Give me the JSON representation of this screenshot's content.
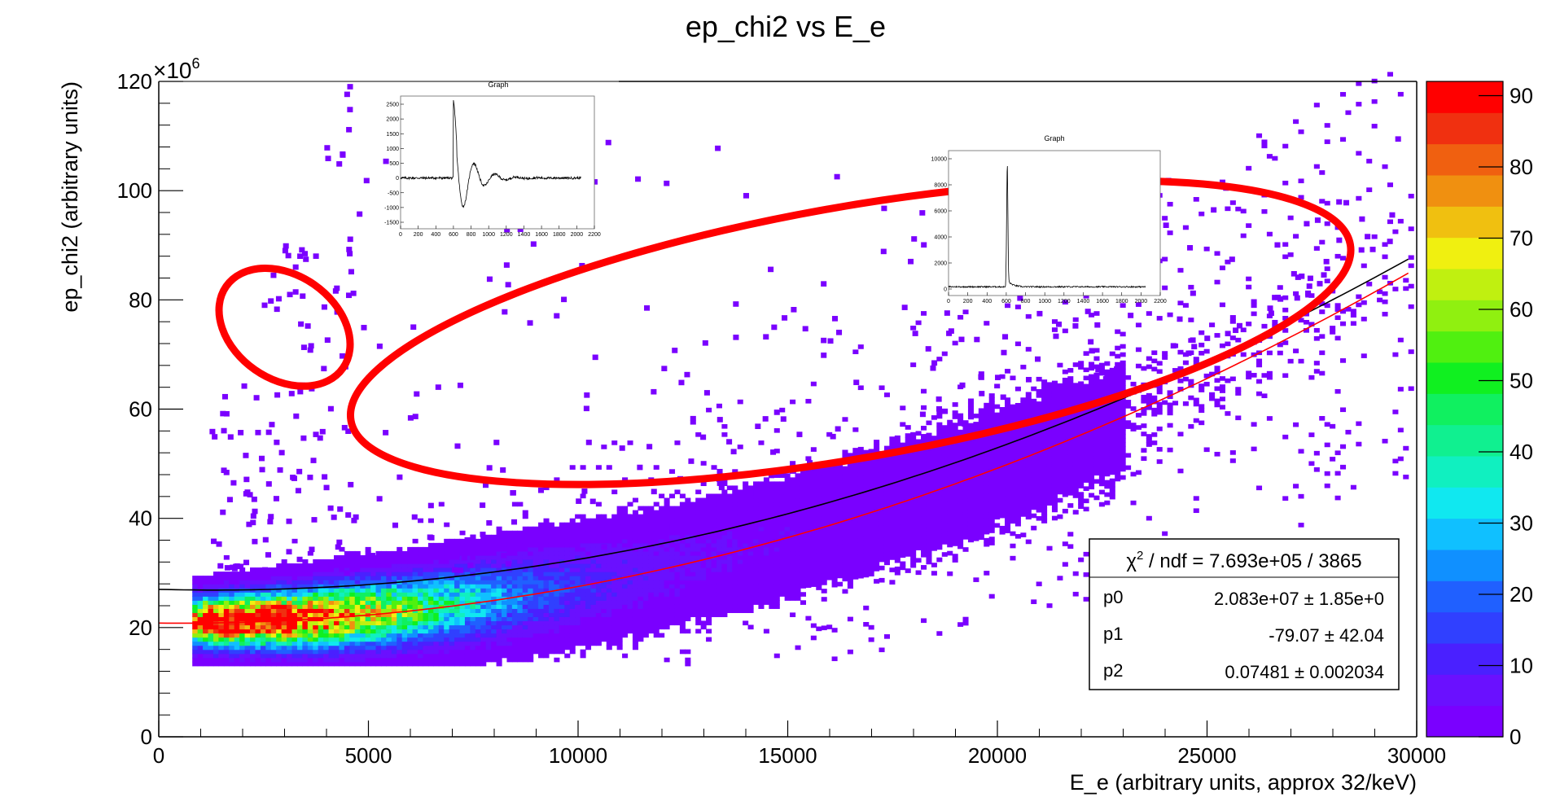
{
  "chart_data": {
    "type": "heatmap",
    "title": "ep_chi2 vs E_e",
    "xlabel": "E_e (arbitrary units, approx 32/keV)",
    "ylabel": "ep_chi2 (arbitrary units)",
    "y_exponent_label": "×10",
    "y_exponent_power": "6",
    "xlim": [
      0,
      30000
    ],
    "ylim": [
      0,
      120
    ],
    "x_ticks": [
      0,
      5000,
      10000,
      15000,
      20000,
      25000,
      30000
    ],
    "y_ticks": [
      0,
      20,
      40,
      60,
      80,
      100,
      120
    ],
    "colorbar": {
      "range": [
        0,
        92
      ],
      "ticks": [
        0,
        10,
        20,
        30,
        40,
        50,
        60,
        70,
        80,
        90
      ],
      "colors": [
        "#7a00ff",
        "#6a10ff",
        "#4a20ff",
        "#3040ff",
        "#2060ff",
        "#1090ff",
        "#10c0ff",
        "#10e8f0",
        "#10f0c0",
        "#10f090",
        "#10f060",
        "#10f020",
        "#50f010",
        "#90f010",
        "#c0f010",
        "#f0f010",
        "#f0c010",
        "#f09010",
        "#f06010",
        "#f03010",
        "#ff0000"
      ]
    },
    "fits": [
      {
        "color": "#000000",
        "p0": 27.0,
        "p1": -0.0002,
        "p2": 7.48e-08
      },
      {
        "color": "#ff0000",
        "p0": 20.83,
        "p1": -7.907e-05,
        "p2": 7.481e-08
      }
    ],
    "stats": {
      "header_prefix": "χ",
      "header_sup": "2",
      "header_rest": " / ndf = 7.693e+05 / 3865",
      "rows": [
        {
          "name": "p0",
          "value": "2.083e+07 ± 1.85e+0"
        },
        {
          "name": "p1",
          "value": "-79.07 ± 42.04"
        },
        {
          "name": "p2",
          "value": "0.07481 ± 0.002034"
        }
      ]
    },
    "annotations": [
      {
        "shape": "ellipse",
        "color": "#ff0000",
        "cx": 3000,
        "cy": 75,
        "rx": 9.5,
        "ry": 1700,
        "rotation_deg": -55
      },
      {
        "shape": "ellipse",
        "color": "#ff0000",
        "cx": 16500,
        "cy": 74,
        "rx": 12100,
        "ry": 23,
        "rotation_deg": -10
      }
    ],
    "insets": [
      {
        "title": "Graph",
        "x_ticks": [
          "0",
          "200",
          "400",
          "600",
          "800",
          "1000",
          "1200",
          "1400",
          "1600",
          "1800",
          "2000",
          "2200"
        ],
        "y_ticks": [
          "-1500",
          "-1000",
          "-500",
          "0",
          "500",
          "1000",
          "1500",
          "2000",
          "2500"
        ]
      },
      {
        "title": "Graph",
        "x_ticks": [
          "0",
          "200",
          "400",
          "600",
          "800",
          "1000",
          "1200",
          "1400",
          "1600",
          "1800",
          "2000",
          "2200"
        ],
        "y_ticks": [
          "0",
          "2000",
          "4000",
          "6000",
          "8000",
          "10000"
        ]
      }
    ]
  }
}
